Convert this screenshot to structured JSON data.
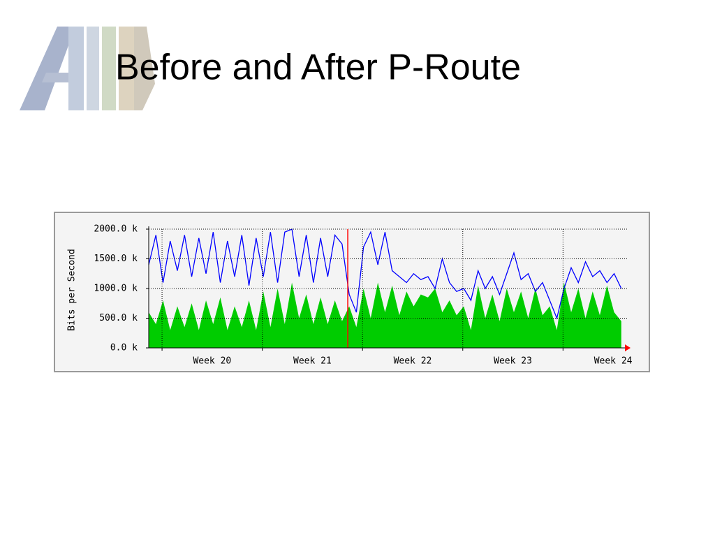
{
  "title": "Before and After P-Route",
  "chart_data": {
    "type": "area-line",
    "y_label": "Bits per Second",
    "x": [
      0,
      0.5,
      1,
      1.5,
      2,
      2.5,
      3,
      3.5,
      4,
      4.5,
      5,
      5.5,
      6,
      6.5,
      7,
      7.5,
      8,
      8.5,
      9,
      9.5,
      10,
      10.5,
      11,
      11.5,
      12,
      12.5,
      13,
      13.5,
      14,
      14.5,
      15,
      15.5,
      16,
      16.5,
      17,
      17.5,
      18,
      18.5,
      19,
      19.5,
      20,
      20.5,
      21,
      21.5,
      22,
      22.5,
      23,
      23.5,
      24,
      24.5,
      25,
      25.5,
      26,
      26.5,
      27,
      27.5,
      28,
      28.5,
      29,
      29.5,
      30,
      30.5,
      31,
      31.5,
      32,
      32.5,
      33
    ],
    "series": [
      {
        "style": "area",
        "color": "#00cc00",
        "values": [
          600,
          400,
          800,
          300,
          700,
          350,
          750,
          300,
          800,
          400,
          850,
          300,
          700,
          350,
          800,
          300,
          950,
          350,
          1000,
          400,
          1100,
          500,
          900,
          400,
          850,
          400,
          800,
          450,
          700,
          350,
          1000,
          500,
          1100,
          600,
          1050,
          550,
          950,
          700,
          900,
          850,
          1000,
          600,
          800,
          550,
          700,
          300,
          1050,
          500,
          900,
          450,
          1000,
          600,
          950,
          500,
          1000,
          550,
          700,
          300,
          1100,
          600,
          1000,
          500,
          950,
          550,
          1050,
          600,
          450
        ]
      },
      {
        "style": "line",
        "color": "#0000ff",
        "values": [
          1400,
          1900,
          1100,
          1800,
          1300,
          1900,
          1200,
          1850,
          1250,
          1950,
          1100,
          1800,
          1200,
          1900,
          1050,
          1850,
          1200,
          1950,
          1100,
          1950,
          2000,
          1200,
          1900,
          1100,
          1850,
          1200,
          1900,
          1750,
          900,
          600,
          1700,
          1950,
          1400,
          1950,
          1300,
          1200,
          1100,
          1250,
          1150,
          1200,
          1000,
          1500,
          1100,
          950,
          1000,
          800,
          1300,
          1000,
          1200,
          900,
          1250,
          1600,
          1150,
          1250,
          950,
          1100,
          800,
          500,
          1000,
          1350,
          1100,
          1450,
          1200,
          1300,
          1100,
          1250,
          1000
        ]
      }
    ],
    "xlim": [
      0,
      33.4
    ],
    "xticks": [
      {
        "value": 4.43,
        "label": "Week 20"
      },
      {
        "value": 11.43,
        "label": "Week 21"
      },
      {
        "value": 18.43,
        "label": "Week 22"
      },
      {
        "value": 25.43,
        "label": "Week 23"
      },
      {
        "value": 32.43,
        "label": "Week 24"
      }
    ],
    "xgrid": [
      0.93,
      7.93,
      14.93,
      21.93,
      28.93
    ],
    "marker_x": 13.9,
    "marker_color": "#ff0000",
    "ylim": [
      0,
      2000
    ],
    "yticks": [
      {
        "value": 0,
        "label": "0.0 k"
      },
      {
        "value": 500,
        "label": "500.0 k"
      },
      {
        "value": 1000,
        "label": "1000.0 k"
      },
      {
        "value": 1500,
        "label": "1500.0 k"
      },
      {
        "value": 2000,
        "label": "2000.0 k"
      }
    ],
    "grid": true
  }
}
